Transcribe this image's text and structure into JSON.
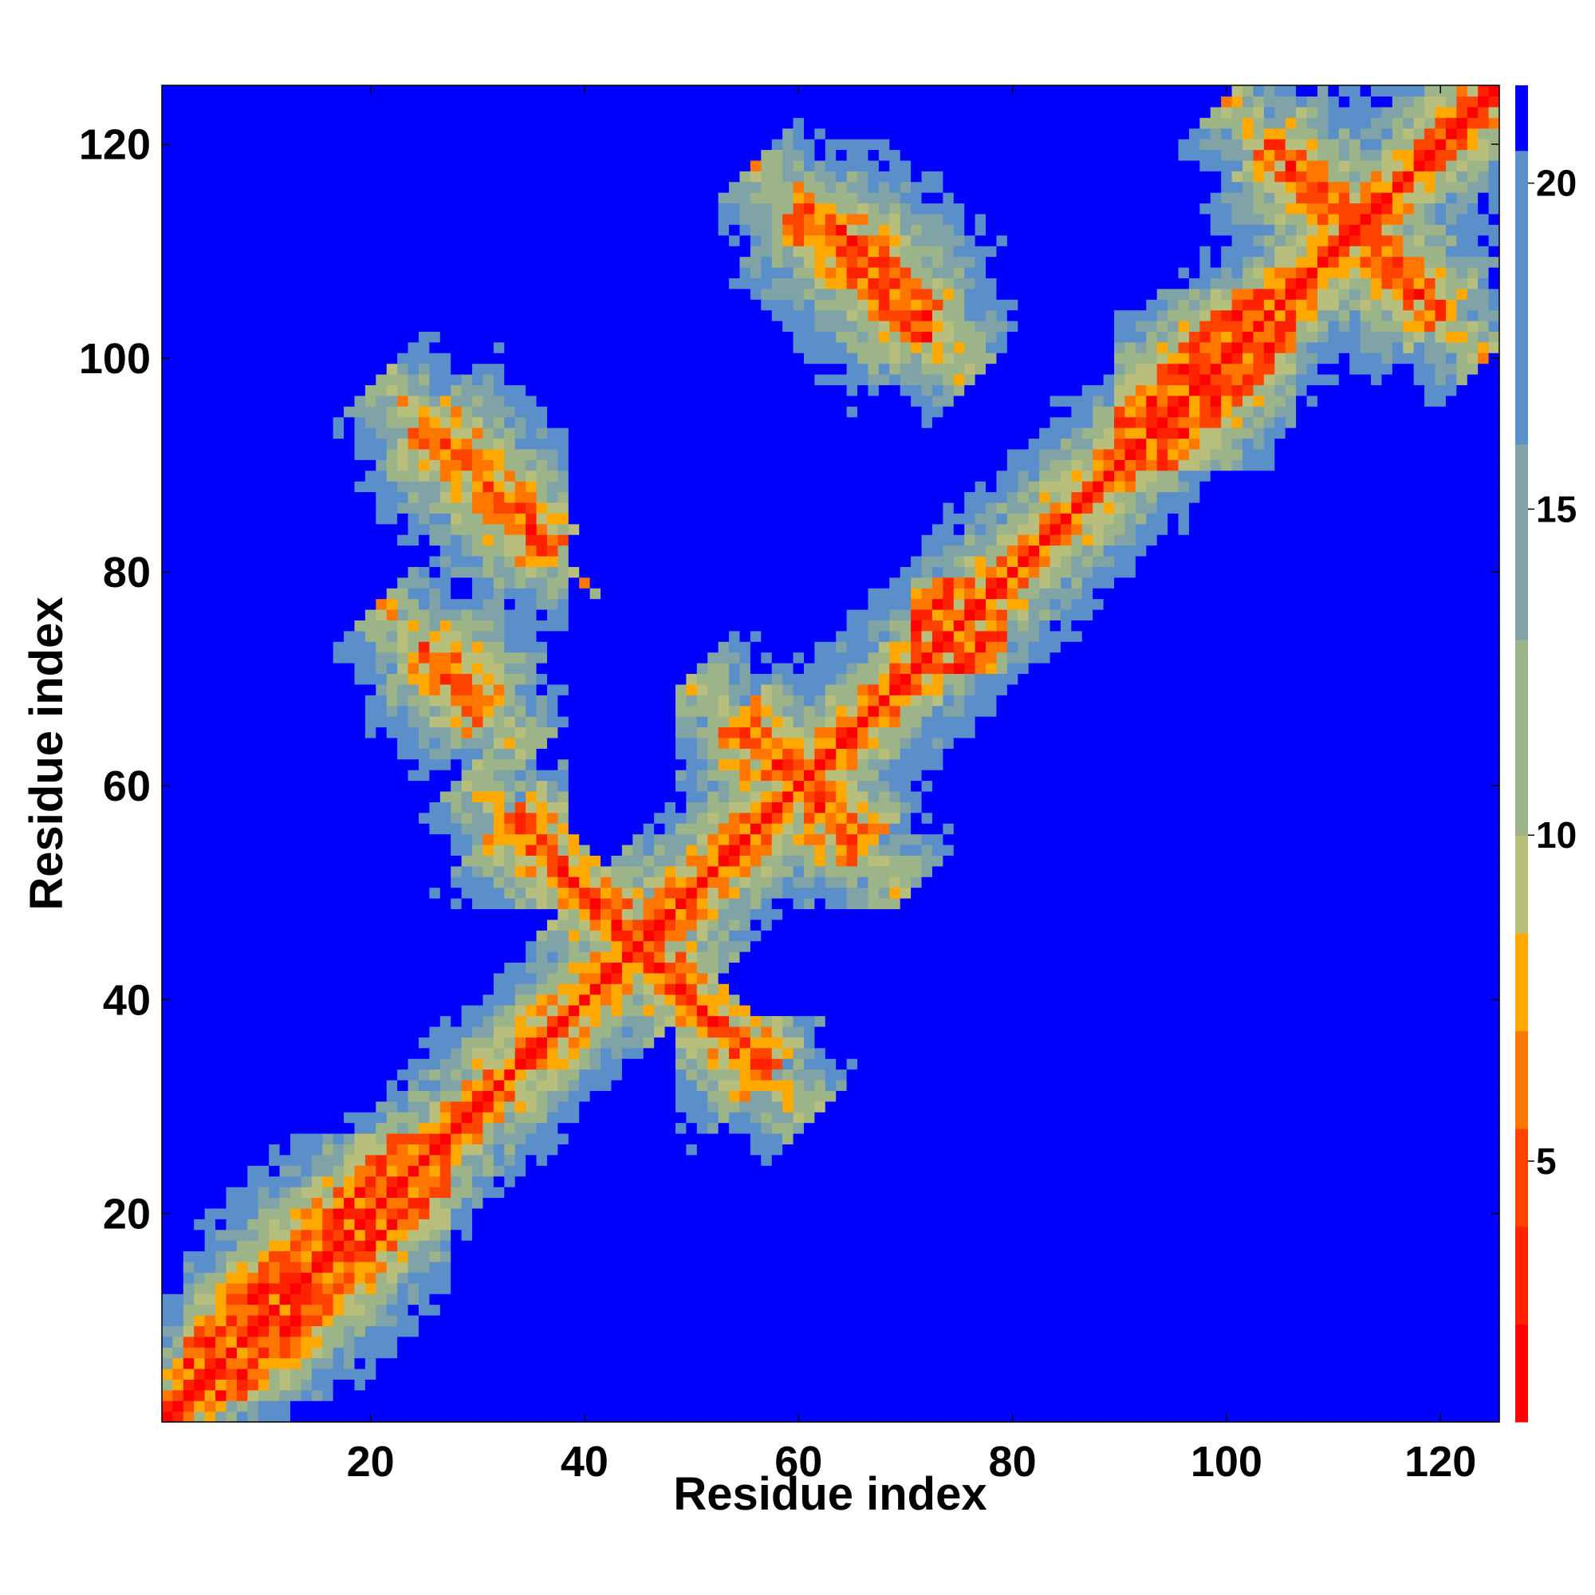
{
  "chart_data": {
    "type": "heatmap",
    "title": "",
    "xlabel": "Residue index",
    "ylabel": "Residue index",
    "n_residues": 125,
    "xlim": [
      1,
      125
    ],
    "ylim": [
      1,
      125
    ],
    "x_ticks": [
      20,
      40,
      60,
      80,
      100,
      120
    ],
    "y_ticks": [
      20,
      40,
      60,
      80,
      100,
      120
    ],
    "colorbar": {
      "ticks": [
        5,
        10,
        15,
        20
      ],
      "range": [
        1,
        21.5
      ],
      "orientation": "vertical",
      "placement": "right",
      "bands": [
        {
          "max": 2.5,
          "color": "#ff0000"
        },
        {
          "max": 4.0,
          "color": "#ff2200"
        },
        {
          "max": 5.5,
          "color": "#ff4400"
        },
        {
          "max": 7.0,
          "color": "#ff7700"
        },
        {
          "max": 8.5,
          "color": "#ffa800"
        },
        {
          "max": 10.0,
          "color": "#b8bf7c"
        },
        {
          "max": 13.0,
          "color": "#9db489"
        },
        {
          "max": 16.0,
          "color": "#7fa3a6"
        },
        {
          "max": 20.5,
          "color": "#5b8fca"
        },
        {
          "max": 21.5,
          "color": "#0000ff"
        }
      ]
    },
    "description_of_values": "Pairwise C-alpha distance map (symmetric); diagonal ~0, near-diagonal 4-8, far pairs >20 shown blue",
    "contact_features": [
      {
        "kind": "diagonal",
        "from": 1,
        "to": 125
      },
      {
        "kind": "antiparallel",
        "center": [
          45,
          45
        ],
        "half_len": 12
      },
      {
        "kind": "antiparallel",
        "center": [
          60,
          60
        ],
        "half_len": 6
      },
      {
        "kind": "antiparallel",
        "center": [
          112,
          112
        ],
        "half_len": 8
      },
      {
        "kind": "antiparallel",
        "center": [
          31,
          88
        ],
        "half_len": 6
      },
      {
        "kind": "antiparallel",
        "center": [
          28,
          70
        ],
        "half_len": 3
      },
      {
        "kind": "antiparallel",
        "center": [
          66,
          108
        ],
        "half_len": 6
      },
      {
        "kind": "antiparallel",
        "center": [
          68,
          108
        ],
        "half_len": 4
      },
      {
        "kind": "parallel",
        "center": [
          15,
          15
        ],
        "offset": 3,
        "half_len": 12
      },
      {
        "kind": "parallel",
        "center": [
          98,
          98
        ],
        "offset": 3,
        "half_len": 8
      },
      {
        "kind": "parallel",
        "center": [
          75,
          75
        ],
        "offset": 4,
        "half_len": 4
      }
    ]
  }
}
